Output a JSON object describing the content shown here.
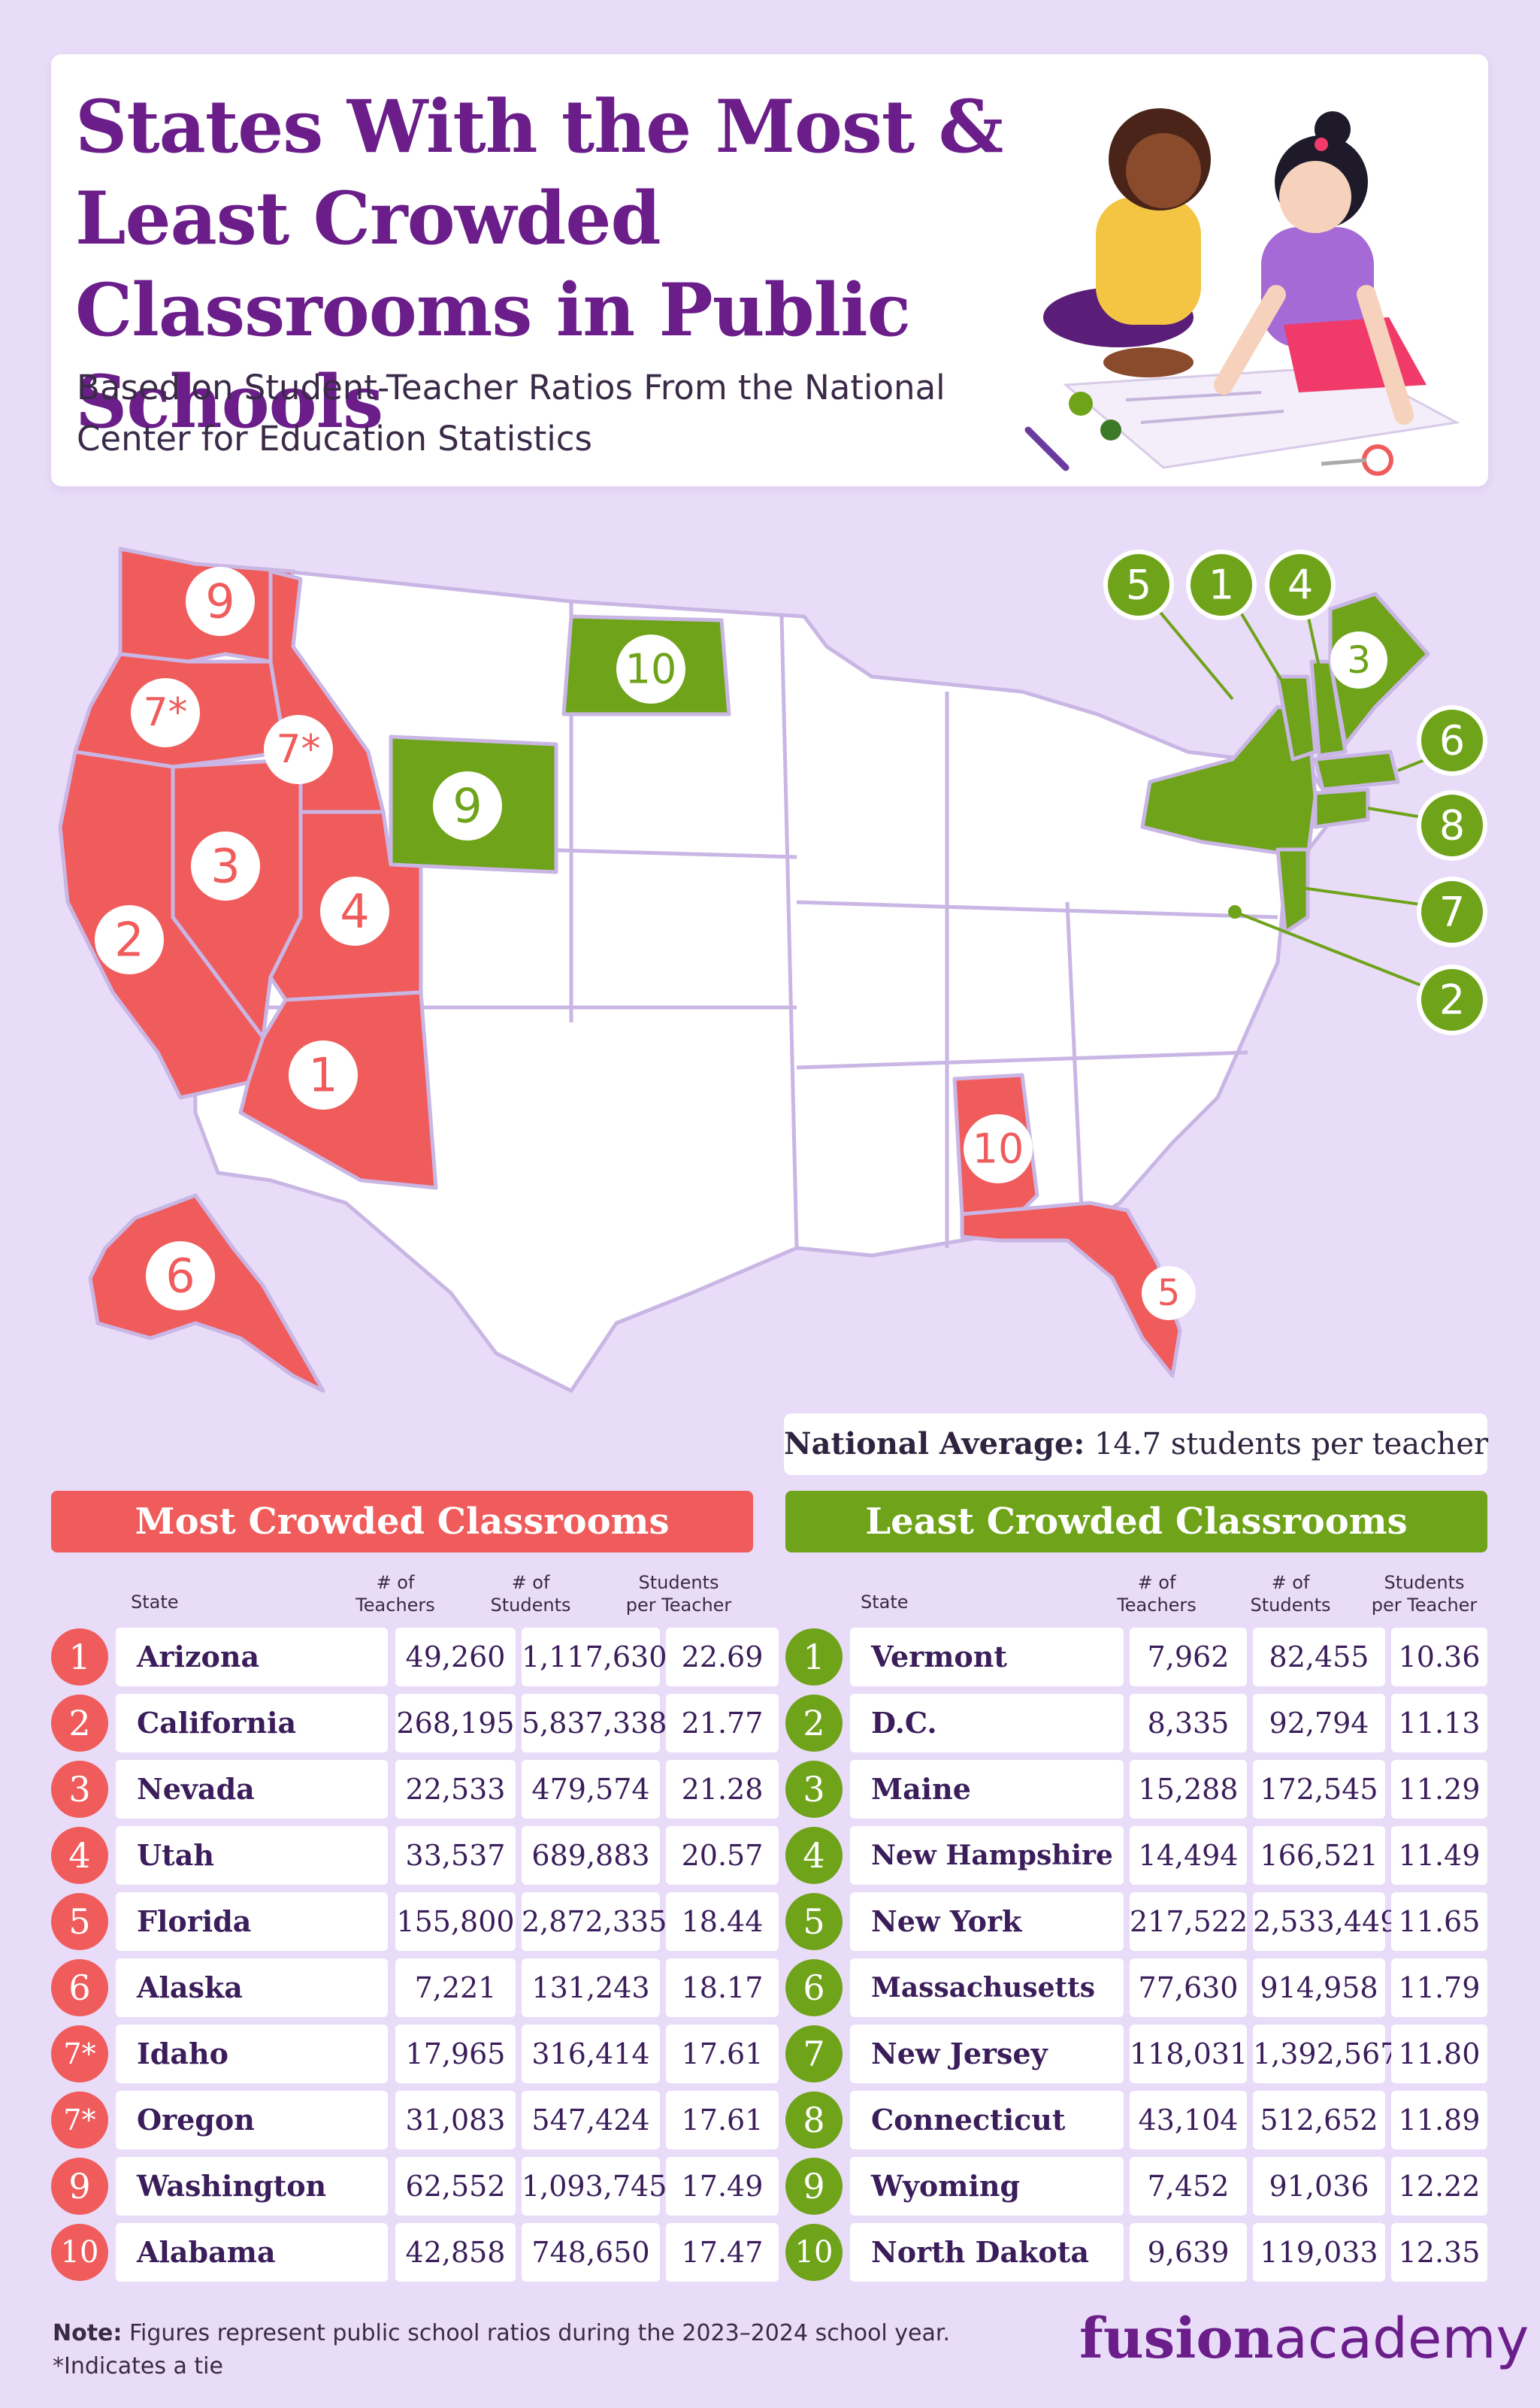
{
  "header": {
    "title": "States With the Most & Least Crowded Classrooms in Public Schools",
    "subtitle": "Based on Student-Teacher Ratios From the National Center for Education Statistics"
  },
  "colors": {
    "background": "#e8dcf8",
    "most_crowded": "#f05c5c",
    "least_crowded": "#6fa31a",
    "title": "#6b1e8a",
    "neutral_state": "#ffffff",
    "state_border": "#c9b6e4"
  },
  "map": {
    "most_crowded_labels": {
      "washington": "9",
      "oregon": "7*",
      "idaho": "7*",
      "california": "2",
      "nevada": "3",
      "utah": "4",
      "arizona": "1",
      "alaska": "6",
      "alabama": "10",
      "florida": "5"
    },
    "least_crowded_labels": {
      "north_dakota": "10",
      "wyoming": "9",
      "maine": "3",
      "new_york": "5",
      "vermont": "1",
      "new_hampshire": "4",
      "massachusetts": "6",
      "connecticut": "8",
      "new_jersey": "7",
      "dc": "2"
    }
  },
  "national_average": {
    "label": "National Average:",
    "value": "14.7 students per teacher"
  },
  "columns": {
    "state": "State",
    "teachers_1": "# of",
    "teachers_2": "Teachers",
    "students_1": "# of",
    "students_2": "Students",
    "ratio_1": "Students",
    "ratio_2": "per Teacher"
  },
  "most_crowded": {
    "title": "Most Crowded Classrooms",
    "rows": [
      {
        "rank": "1",
        "state": "Arizona",
        "teachers": "49,260",
        "students": "1,117,630",
        "ratio": "22.69"
      },
      {
        "rank": "2",
        "state": "California",
        "teachers": "268,195",
        "students": "5,837,338",
        "ratio": "21.77"
      },
      {
        "rank": "3",
        "state": "Nevada",
        "teachers": "22,533",
        "students": "479,574",
        "ratio": "21.28"
      },
      {
        "rank": "4",
        "state": "Utah",
        "teachers": "33,537",
        "students": "689,883",
        "ratio": "20.57"
      },
      {
        "rank": "5",
        "state": "Florida",
        "teachers": "155,800",
        "students": "2,872,335",
        "ratio": "18.44"
      },
      {
        "rank": "6",
        "state": "Alaska",
        "teachers": "7,221",
        "students": "131,243",
        "ratio": "18.17"
      },
      {
        "rank": "7*",
        "state": "Idaho",
        "teachers": "17,965",
        "students": "316,414",
        "ratio": "17.61"
      },
      {
        "rank": "7*",
        "state": "Oregon",
        "teachers": "31,083",
        "students": "547,424",
        "ratio": "17.61"
      },
      {
        "rank": "9",
        "state": "Washington",
        "teachers": "62,552",
        "students": "1,093,745",
        "ratio": "17.49"
      },
      {
        "rank": "10",
        "state": "Alabama",
        "teachers": "42,858",
        "students": "748,650",
        "ratio": "17.47"
      }
    ]
  },
  "least_crowded": {
    "title": "Least Crowded Classrooms",
    "rows": [
      {
        "rank": "1",
        "state": "Vermont",
        "teachers": "7,962",
        "students": "82,455",
        "ratio": "10.36"
      },
      {
        "rank": "2",
        "state": "D.C.",
        "teachers": "8,335",
        "students": "92,794",
        "ratio": "11.13"
      },
      {
        "rank": "3",
        "state": "Maine",
        "teachers": "15,288",
        "students": "172,545",
        "ratio": "11.29"
      },
      {
        "rank": "4",
        "state": "New Hampshire",
        "teachers": "14,494",
        "students": "166,521",
        "ratio": "11.49"
      },
      {
        "rank": "5",
        "state": "New York",
        "teachers": "217,522",
        "students": "2,533,449",
        "ratio": "11.65"
      },
      {
        "rank": "6",
        "state": "Massachusetts",
        "teachers": "77,630",
        "students": "914,958",
        "ratio": "11.79"
      },
      {
        "rank": "7",
        "state": "New Jersey",
        "teachers": "118,031",
        "students": "1,392,567",
        "ratio": "11.80"
      },
      {
        "rank": "8",
        "state": "Connecticut",
        "teachers": "43,104",
        "students": "512,652",
        "ratio": "11.89"
      },
      {
        "rank": "9",
        "state": "Wyoming",
        "teachers": "7,452",
        "students": "91,036",
        "ratio": "12.22"
      },
      {
        "rank": "10",
        "state": "North Dakota",
        "teachers": "9,639",
        "students": "119,033",
        "ratio": "12.35"
      }
    ]
  },
  "footer": {
    "note_label": "Note:",
    "note_text": " Figures represent public school ratios during the 2023–2024 school year.",
    "tie_note": "*Indicates a tie",
    "brand_bold": "fusion",
    "brand_light": "academy"
  }
}
